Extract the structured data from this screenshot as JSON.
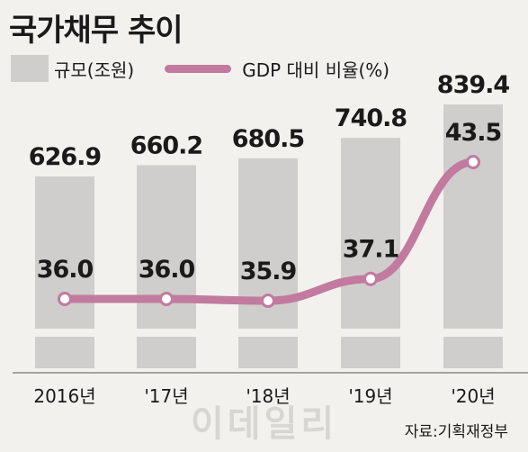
{
  "title": "국가채무 추이",
  "legend": {
    "bar_label": "규모(조원)",
    "line_label": "GDP 대비 비율(%)"
  },
  "source": "자료:기획재정부",
  "watermark": "이데일리",
  "colors": {
    "bar": "#cfcecd",
    "line": "#c27a9f",
    "background": "#f3f1ee",
    "text": "#1a1a1a"
  },
  "chart_data": {
    "type": "bar",
    "categories": [
      "2016년",
      "'17년",
      "'18년",
      "'19년",
      "'20년"
    ],
    "series": [
      {
        "name": "규모(조원)",
        "type": "bar",
        "values": [
          626.9,
          660.2,
          680.5,
          740.8,
          839.4
        ],
        "labels": [
          "626.9",
          "660.2",
          "680.5",
          "740.8",
          "839.4"
        ]
      },
      {
        "name": "GDP 대비 비율(%)",
        "type": "line",
        "values": [
          36.0,
          36.0,
          35.9,
          37.1,
          43.5
        ],
        "labels": [
          "36.0",
          "36.0",
          "35.9",
          "37.1",
          "43.5"
        ]
      }
    ],
    "axis_break": true,
    "grid": false,
    "legend_position": "top-left"
  }
}
